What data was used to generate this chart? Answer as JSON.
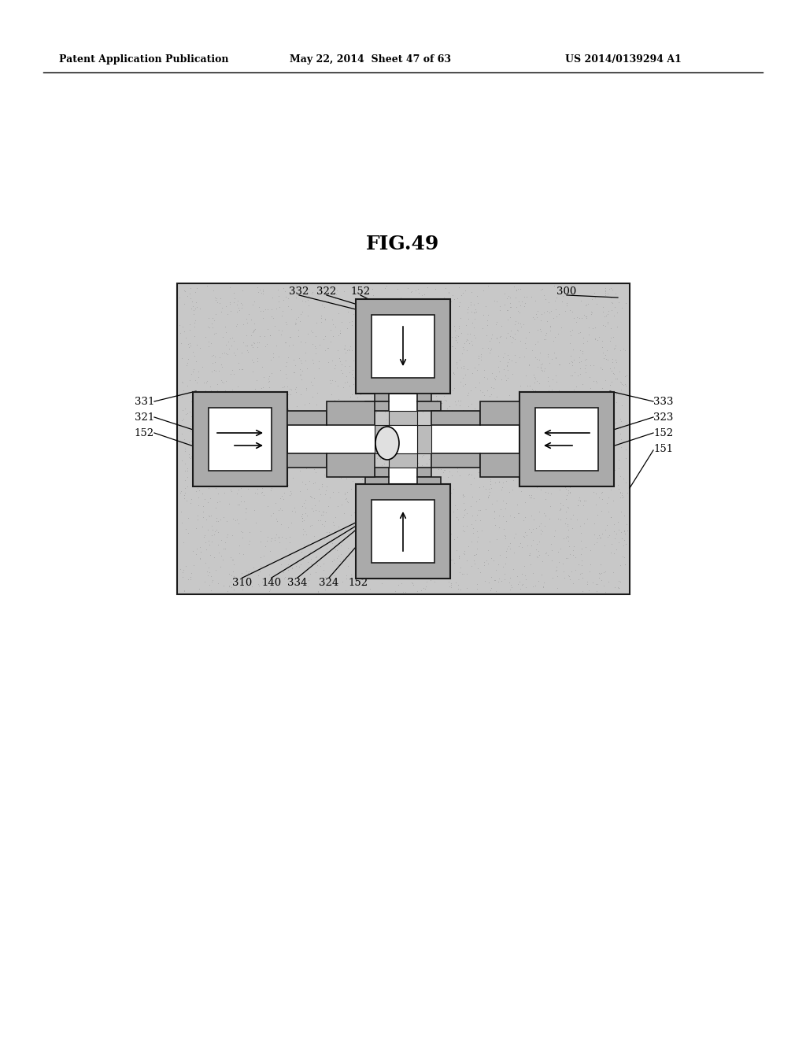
{
  "header_left": "Patent Application Publication",
  "header_mid": "May 22, 2014  Sheet 47 of 63",
  "header_right": "US 2014/0139294 A1",
  "title": "FIG.49",
  "bg_color": "#ffffff",
  "dot_bg": "#c8c8c8",
  "gray_wall": "#aaaaaa",
  "border_color": "#1a1a1a",
  "white": "#ffffff"
}
